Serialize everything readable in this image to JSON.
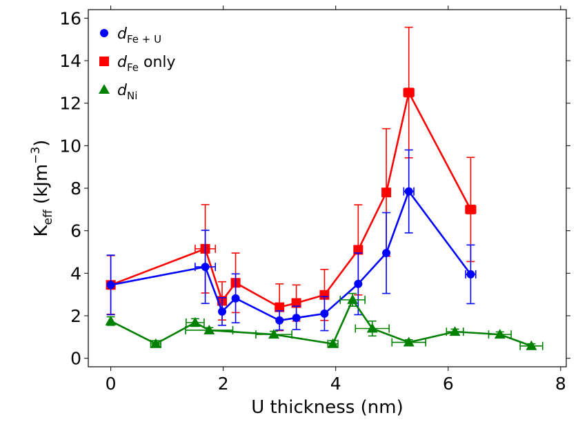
{
  "chart_data": {
    "type": "line",
    "xlabel": "U thickness (nm)",
    "ylabel": {
      "main": "K",
      "sub": "eff",
      "unit_pre": " (kJm",
      "unit_sup": "−3",
      "unit_post": ")"
    },
    "xlim": [
      -0.4,
      8.1
    ],
    "ylim": [
      -0.4,
      16.4
    ],
    "xticks": [
      0,
      2,
      4,
      6,
      8
    ],
    "yticks": [
      0,
      2,
      4,
      6,
      8,
      10,
      12,
      14,
      16
    ],
    "legend_position": "top-left",
    "series": [
      {
        "name": "d_Fe+U",
        "legend": {
          "main": "d",
          "sub": "Fe + U",
          "suffix": ""
        },
        "color": "#0000ff",
        "marker": "circle",
        "points": [
          {
            "x": 0.0,
            "y": 3.45,
            "yerr": 1.4,
            "xerr": 0
          },
          {
            "x": 1.68,
            "y": 4.3,
            "yerr": 1.72,
            "xerr": 0.18
          },
          {
            "x": 1.98,
            "y": 2.2,
            "yerr": 0.65,
            "xerr": 0
          },
          {
            "x": 2.22,
            "y": 2.82,
            "yerr": 1.15,
            "xerr": 0
          },
          {
            "x": 3.0,
            "y": 1.78,
            "yerr": 0.45,
            "xerr": 0
          },
          {
            "x": 3.3,
            "y": 1.9,
            "yerr": 0.55,
            "xerr": 0
          },
          {
            "x": 3.8,
            "y": 2.1,
            "yerr": 0.8,
            "xerr": 0
          },
          {
            "x": 4.4,
            "y": 3.5,
            "yerr": 1.45,
            "xerr": 0
          },
          {
            "x": 4.9,
            "y": 4.95,
            "yerr": 1.9,
            "xerr": 0
          },
          {
            "x": 5.3,
            "y": 7.85,
            "yerr": 1.95,
            "xerr": 0.09
          },
          {
            "x": 6.4,
            "y": 3.95,
            "yerr": 1.38,
            "xerr": 0.09
          }
        ]
      },
      {
        "name": "d_Fe only",
        "legend": {
          "main": "d",
          "sub": "Fe",
          "suffix": " only"
        },
        "color": "#ff0000",
        "marker": "square",
        "points": [
          {
            "x": 0.0,
            "y": 3.45,
            "yerr": 1.38,
            "xerr": 0
          },
          {
            "x": 1.68,
            "y": 5.15,
            "yerr": 2.08,
            "xerr": 0.18
          },
          {
            "x": 1.98,
            "y": 2.7,
            "yerr": 0.9,
            "xerr": 0
          },
          {
            "x": 2.22,
            "y": 3.55,
            "yerr": 1.4,
            "xerr": 0
          },
          {
            "x": 3.0,
            "y": 2.4,
            "yerr": 1.1,
            "xerr": 0.07
          },
          {
            "x": 3.3,
            "y": 2.6,
            "yerr": 0.85,
            "xerr": 0
          },
          {
            "x": 3.8,
            "y": 2.98,
            "yerr": 1.2,
            "xerr": 0
          },
          {
            "x": 4.4,
            "y": 5.1,
            "yerr": 2.12,
            "xerr": 0
          },
          {
            "x": 4.9,
            "y": 7.8,
            "yerr": 3.0,
            "xerr": 0
          },
          {
            "x": 5.3,
            "y": 12.5,
            "yerr": 3.07,
            "xerr": 0.09
          },
          {
            "x": 6.4,
            "y": 7.0,
            "yerr": 2.45,
            "xerr": 0.09
          }
        ]
      },
      {
        "name": "d_Ni",
        "legend": {
          "main": "d",
          "sub": "Ni",
          "suffix": ""
        },
        "color": "#008000",
        "marker": "triangle",
        "points": [
          {
            "x": 0.0,
            "y": 1.75,
            "yerr": 0.2,
            "xerr": 0
          },
          {
            "x": 0.8,
            "y": 0.68,
            "yerr": 0.15,
            "xerr": 0.09
          },
          {
            "x": 1.5,
            "y": 1.68,
            "yerr": 0.18,
            "xerr": 0.16
          },
          {
            "x": 1.75,
            "y": 1.32,
            "yerr": 0.12,
            "xerr": 0.42
          },
          {
            "x": 2.9,
            "y": 1.12,
            "yerr": 0.15,
            "xerr": 0.32
          },
          {
            "x": 3.95,
            "y": 0.68,
            "yerr": 0.15,
            "xerr": 0.09
          },
          {
            "x": 4.3,
            "y": 2.75,
            "yerr": 0.3,
            "xerr": 0.22
          },
          {
            "x": 4.65,
            "y": 1.4,
            "yerr": 0.35,
            "xerr": 0.3
          },
          {
            "x": 5.3,
            "y": 0.75,
            "yerr": 0.12,
            "xerr": 0.3
          },
          {
            "x": 6.12,
            "y": 1.25,
            "yerr": 0.12,
            "xerr": 0.15
          },
          {
            "x": 6.92,
            "y": 1.12,
            "yerr": 0.12,
            "xerr": 0.2
          },
          {
            "x": 7.48,
            "y": 0.58,
            "yerr": 0.1,
            "xerr": 0.2
          }
        ]
      }
    ]
  }
}
